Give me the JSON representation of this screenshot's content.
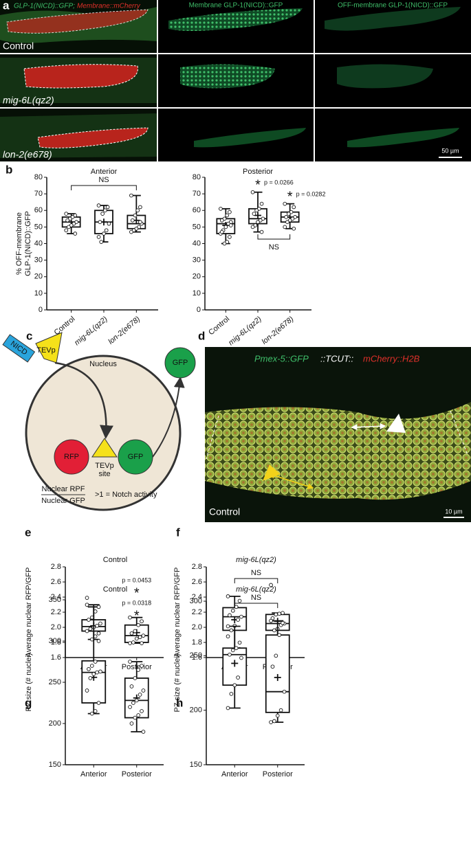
{
  "panel_letters": [
    "a",
    "b",
    "c",
    "d",
    "e",
    "f",
    "g",
    "h"
  ],
  "panel_a": {
    "column_1_title": [
      "GLP-1(NICD)::GFP;",
      "Membrane::mCherry"
    ],
    "column_titles": [
      "Membrane GLP-1(NICD)::GFP",
      "OFF-membrane GLP-1(NICD)::GFP"
    ],
    "row_labels": [
      "Control",
      "mig-6L(qz2)",
      "lon-2(e678)"
    ],
    "scale_bar": "50 µm"
  },
  "panel_c": {
    "nicd": "NICD",
    "tevp": "TEVp",
    "nucleus": "Nucleus",
    "gfp_out": "GFP",
    "rfp": "RFP",
    "tevp_site": [
      "TEVp",
      "site"
    ],
    "gfp": "GFP",
    "ratio_numerator": "Nuclear RPF",
    "ratio_denominator": "Nuclear GFP",
    "ratio_note": ">1 = Notch activity"
  },
  "panel_d": {
    "title_parts": [
      "Pmex-5::GFP",
      "::TCUT::",
      "mCherry::H2B"
    ],
    "label": "Control",
    "scale_bar": "10 µm"
  },
  "chart_data": [
    {
      "type": "box",
      "title": "Anterior",
      "ylabel": [
        "% OFF-membrane",
        "GLP-1(NICD)::GFP"
      ],
      "categories": [
        "Control",
        "mig-6L(qz2)",
        "lon-2(e678)"
      ],
      "ylim": [
        0,
        80
      ],
      "yticks": [
        0,
        10,
        20,
        30,
        40,
        50,
        60,
        70,
        80
      ],
      "boxes": [
        {
          "min": 46,
          "q1": 50,
          "median": 53,
          "q3": 56,
          "max": 58,
          "mean": 53,
          "points": [
            58,
            57,
            56,
            55,
            54,
            53,
            52,
            51,
            50,
            48,
            46
          ]
        },
        {
          "min": 41,
          "q1": 46,
          "median": 53,
          "q3": 60,
          "max": 63,
          "mean": 53,
          "points": [
            63,
            62,
            60,
            58,
            53,
            52,
            48,
            46,
            41,
            44
          ]
        },
        {
          "min": 47,
          "q1": 49,
          "median": 52,
          "q3": 57,
          "max": 69,
          "mean": 54,
          "points": [
            69,
            62,
            60,
            57,
            54,
            52,
            50,
            49,
            48,
            47,
            53
          ]
        }
      ],
      "brackets": [
        {
          "text": "NS"
        }
      ],
      "stars": []
    },
    {
      "type": "box",
      "title": "Posterior",
      "categories": [
        "Control",
        "mig-6L(qz2)",
        "lon-2(e678)"
      ],
      "ylim": [
        0,
        80
      ],
      "yticks": [
        0,
        10,
        20,
        30,
        40,
        50,
        60,
        70,
        80
      ],
      "boxes": [
        {
          "min": 40,
          "q1": 46,
          "median": 52,
          "q3": 55,
          "max": 61,
          "mean": 51,
          "points": [
            61,
            59,
            57,
            55,
            54,
            53,
            52,
            50,
            48,
            46,
            44,
            41,
            40,
            47,
            51
          ]
        },
        {
          "min": 47,
          "q1": 52,
          "median": 55,
          "q3": 61,
          "max": 71,
          "mean": 57,
          "points": [
            71,
            64,
            61,
            60,
            58,
            55,
            54,
            53,
            51,
            50,
            47
          ]
        },
        {
          "min": 49,
          "q1": 53,
          "median": 56,
          "q3": 59,
          "max": 64,
          "mean": 56,
          "points": [
            64,
            62,
            59,
            58,
            56,
            56,
            55,
            54,
            53,
            50,
            49
          ]
        }
      ],
      "brackets": [
        {
          "text": "NS"
        }
      ],
      "stars": [
        {
          "text": "*",
          "p": "p = 0.0266"
        },
        {
          "text": "*",
          "p": "p = 0.0282"
        }
      ]
    },
    {
      "type": "box",
      "title": "Control",
      "ylabel": "Average nuclear RFP/GFP",
      "categories": [
        "Anterior",
        "Posterior"
      ],
      "ylim": [
        1.6,
        2.8
      ],
      "yticks": [
        1.6,
        1.8,
        {
          "value": 2,
          "label": "2.0"
        },
        2.2,
        2.4,
        2.6,
        2.8
      ],
      "boxes": [
        {
          "min": 1.84,
          "q1": 1.95,
          "median": 2.01,
          "q3": 2.1,
          "max": 2.27,
          "mean": 2.02,
          "points": [
            2.39,
            2.27,
            2.21,
            2.13,
            2.1,
            2.05,
            2.02,
            2.0,
            1.98,
            1.95,
            1.92,
            1.88,
            1.84
          ]
        },
        {
          "min": 1.79,
          "q1": 1.8,
          "median": 1.89,
          "q3": 2.03,
          "max": 2.13,
          "mean": 1.93,
          "points": [
            2.13,
            2.08,
            2.03,
            1.95,
            1.92,
            1.89,
            1.87,
            1.85,
            1.8,
            1.79,
            1.79
          ]
        }
      ],
      "brackets": [],
      "stars": [
        {
          "text": "*",
          "p": "p = 0.0453"
        }
      ]
    },
    {
      "type": "box",
      "title": "mig-6L(qz2)",
      "ylabel": "Average nuclear RFP/GFP",
      "categories": [
        "Anterior",
        "Posterior"
      ],
      "ylim": [
        1.6,
        2.8
      ],
      "yticks": [
        1.6,
        1.8,
        {
          "value": 2,
          "label": "2.0"
        },
        2.2,
        2.4,
        2.6,
        2.8
      ],
      "boxes": [
        {
          "min": 1.71,
          "q1": 1.96,
          "median": 2.14,
          "q3": 2.26,
          "max": 2.41,
          "mean": 2.1,
          "points": [
            2.41,
            2.35,
            2.27,
            2.22,
            2.16,
            2.14,
            2.1,
            2.02,
            1.96,
            1.88,
            1.71
          ]
        },
        {
          "min": 1.77,
          "q1": 1.96,
          "median": 2.05,
          "q3": 2.17,
          "max": 2.19,
          "mean": 2.08,
          "points": [
            2.56,
            2.19,
            2.18,
            2.17,
            2.12,
            2.05,
            2.03,
            1.98,
            1.96,
            1.85,
            1.77
          ]
        }
      ],
      "brackets": [
        {
          "text": "NS"
        }
      ],
      "stars": []
    },
    {
      "type": "box",
      "title": "Control",
      "ylabel": "PZ size (# nuclei)",
      "categories": [
        "Anterior",
        "Posterior"
      ],
      "ylim": [
        150,
        350
      ],
      "yticks": [
        150,
        200,
        250,
        300,
        350
      ],
      "boxes": [
        {
          "min": 212,
          "q1": 225,
          "median": 262,
          "q3": 276,
          "max": 344,
          "mean": 256,
          "points": [
            344,
            300,
            275,
            270,
            266,
            263,
            262,
            260,
            255,
            240,
            225,
            215,
            212
          ]
        },
        {
          "min": 190,
          "q1": 207,
          "median": 228,
          "q3": 255,
          "max": 275,
          "mean": 231,
          "points": [
            275,
            270,
            265,
            255,
            245,
            240,
            235,
            228,
            225,
            220,
            215,
            210,
            207,
            200,
            190
          ]
        }
      ],
      "brackets": [],
      "stars": [
        {
          "text": "*",
          "p": "p = 0.0318"
        }
      ]
    },
    {
      "type": "box",
      "title": "mig-6L(qz2)",
      "ylabel": "PZ size (# nuclei)",
      "categories": [
        "Anterior",
        "Posterior"
      ],
      "ylim": [
        150,
        300
      ],
      "yticks": [
        150,
        200,
        250,
        300
      ],
      "boxes": [
        {
          "min": 202,
          "q1": 223,
          "median": 251,
          "q3": 257,
          "max": 277,
          "mean": 243,
          "points": [
            277,
            262,
            257,
            255,
            251,
            248,
            230,
            223,
            215,
            202
          ]
        },
        {
          "min": 189,
          "q1": 198,
          "median": 217,
          "q3": 269,
          "max": 282,
          "mean": 230,
          "points": [
            282,
            280,
            269,
            250,
            240,
            217,
            200,
            195,
            190,
            189
          ]
        }
      ],
      "brackets": [
        {
          "text": "NS"
        }
      ],
      "stars": []
    }
  ]
}
